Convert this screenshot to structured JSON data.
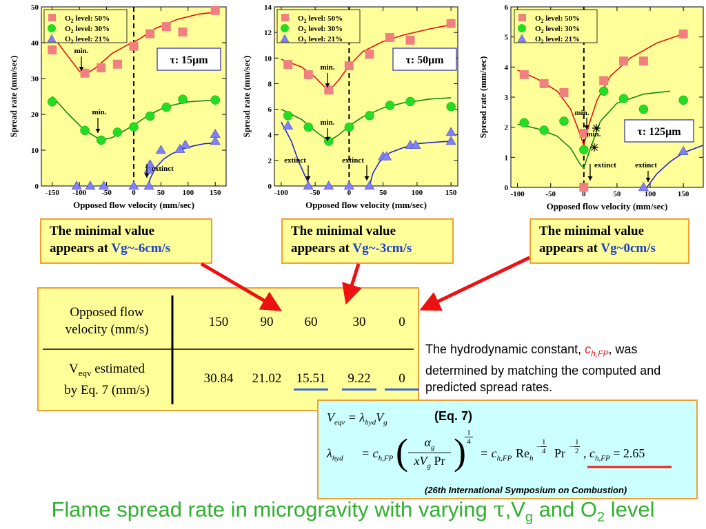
{
  "chart_data": [
    {
      "type": "scatter",
      "xlabel": "Opposed flow velocity (mm/sec)",
      "ylabel": "Spread rate (mm/sec)",
      "xlim": [
        -170,
        170
      ],
      "ylim": [
        0,
        50
      ],
      "xticks": [
        -150,
        -100,
        -50,
        0,
        50,
        100,
        150
      ],
      "yticks": [
        0,
        10,
        20,
        30,
        40,
        50
      ],
      "tau_label": "τ: 15μm",
      "legend": [
        "O2 level: 50%",
        "O2 level: 30%",
        "O2 level: 21%"
      ],
      "series": [
        {
          "name": "O2 level: 50%",
          "color": "#f08080",
          "marker": "square",
          "x": [
            -150,
            -90,
            -60,
            -30,
            0,
            30,
            60,
            90,
            150
          ],
          "y": [
            38,
            31.5,
            33,
            34,
            39,
            42.5,
            44.5,
            43,
            49
          ],
          "curve_x": [
            -150,
            -120,
            -100,
            -90,
            -70,
            -40,
            -10,
            10,
            40,
            80,
            120,
            150
          ],
          "curve_y": [
            42,
            36,
            32,
            31,
            33,
            37,
            39.5,
            41,
            44,
            46.5,
            48,
            48.5
          ]
        },
        {
          "name": "O2 level: 30%",
          "color": "#22dd22",
          "marker": "circle",
          "x": [
            -150,
            -90,
            -60,
            -30,
            0,
            30,
            60,
            90,
            150
          ],
          "y": [
            23.5,
            15.5,
            12.8,
            15,
            16.5,
            19.5,
            22,
            24.2,
            24
          ],
          "curve_x": [
            -150,
            -120,
            -90,
            -60,
            -40,
            -20,
            0,
            30,
            60,
            100,
            150
          ],
          "curve_y": [
            25,
            20,
            15.5,
            12.8,
            13.5,
            15.2,
            17,
            20,
            22.2,
            23.5,
            24
          ]
        },
        {
          "name": "O2 level: 21%",
          "color": "#8080ff",
          "marker": "triangle",
          "x": [
            -105,
            -80,
            -55,
            0,
            28,
            28,
            30,
            50,
            85,
            95,
            150,
            150
          ],
          "y": [
            0,
            0,
            0,
            0,
            0,
            4.5,
            6,
            10,
            10.3,
            11.5,
            12.5,
            14.5
          ],
          "curve_x": [
            28,
            30,
            40,
            55,
            70,
            90,
            110,
            130,
            150
          ],
          "curve_y": [
            0,
            2,
            5,
            7.5,
            9,
            10.3,
            11.2,
            11.8,
            12
          ]
        }
      ],
      "annotations": [
        {
          "text": "min."
        },
        {
          "text": "min."
        },
        {
          "text": "extinct"
        }
      ]
    },
    {
      "type": "scatter",
      "xlabel": "Opposed flow velocity (mm/sec)",
      "ylabel": "Spread rate (mm/sec)",
      "xlim": [
        -110,
        160
      ],
      "ylim": [
        0,
        14
      ],
      "xticks": [
        -100,
        -50,
        0,
        50,
        100,
        150
      ],
      "yticks": [
        0,
        2,
        4,
        6,
        8,
        10,
        12,
        14
      ],
      "tau_label": "τ: 50μm",
      "legend": [
        "O2 level: 50%",
        "O2 level: 30%",
        "O2 level: 21%"
      ],
      "series": [
        {
          "name": "O2 level: 50%",
          "color": "#f08080",
          "marker": "square",
          "x": [
            -90,
            -60,
            -30,
            0,
            30,
            60,
            90,
            150
          ],
          "y": [
            9.5,
            8.7,
            7.5,
            9.4,
            10.3,
            11.6,
            11.4,
            12.7
          ],
          "curve_x": [
            -100,
            -70,
            -50,
            -30,
            -15,
            0,
            20,
            50,
            80,
            120,
            150
          ],
          "curve_y": [
            9.9,
            9.3,
            8.5,
            7.4,
            8.3,
            9.4,
            10.5,
            11.3,
            11.8,
            12.3,
            12.6
          ]
        },
        {
          "name": "O2 level: 30%",
          "color": "#22dd22",
          "marker": "circle",
          "x": [
            -90,
            -60,
            -30,
            0,
            30,
            60,
            90,
            150
          ],
          "y": [
            5.5,
            4.6,
            3.5,
            4.6,
            5.5,
            6.3,
            6.6,
            6.2
          ],
          "curve_x": [
            -100,
            -70,
            -50,
            -30,
            -15,
            0,
            20,
            50,
            80,
            120,
            150
          ],
          "curve_y": [
            6.0,
            5.2,
            4.3,
            3.5,
            4.0,
            4.7,
            5.4,
            6.1,
            6.5,
            6.8,
            6.9
          ]
        },
        {
          "name": "O2 level: 21%",
          "color": "#8080ff",
          "marker": "triangle",
          "x": [
            -90,
            -60,
            -30,
            0,
            30,
            50,
            55,
            90,
            98,
            150,
            150
          ],
          "y": [
            4.7,
            0,
            0,
            0,
            0,
            2.3,
            2.3,
            3.2,
            3.2,
            3.5,
            4.2
          ],
          "curve_x": [
            -100,
            -85,
            -75,
            -65,
            -58
          ],
          "curve_y": [
            5.0,
            3.5,
            2.0,
            0.8,
            0
          ],
          "curve2_x": [
            30,
            35,
            45,
            60,
            80,
            100,
            120,
            150
          ],
          "curve2_y": [
            0,
            1.0,
            1.9,
            2.6,
            3.0,
            3.3,
            3.4,
            3.5
          ]
        }
      ],
      "annotations": [
        {
          "text": "min."
        },
        {
          "text": "min."
        },
        {
          "text": "extinct"
        },
        {
          "text": "extinct"
        }
      ]
    },
    {
      "type": "scatter",
      "xlabel": "Opposed flow velocity (mm/sec)",
      "ylabel": "Spread rate (mm/sec)",
      "xlim": [
        -110,
        180
      ],
      "ylim": [
        0,
        6
      ],
      "xticks": [
        -100,
        -50,
        0,
        50,
        100,
        150
      ],
      "yticks": [
        0,
        1,
        2,
        3,
        4,
        5,
        6
      ],
      "tau_label": "τ: 125μm",
      "legend": [
        "O2 level: 50%",
        "O2 level: 30%",
        "O2 level: 21%"
      ],
      "series": [
        {
          "name": "O2 level: 50%",
          "color": "#f08080",
          "marker": "square",
          "x": [
            -90,
            -60,
            -30,
            0,
            0,
            30,
            60,
            90,
            150
          ],
          "y": [
            3.75,
            3.45,
            3.15,
            1.8,
            0,
            3.55,
            4.2,
            4.2,
            5.1
          ],
          "curve_x": [
            -100,
            -70,
            -40,
            -20,
            -8,
            0,
            8,
            20,
            40,
            70,
            110,
            150
          ],
          "curve_y": [
            3.9,
            3.6,
            3.2,
            2.6,
            1.9,
            1.4,
            2.1,
            2.9,
            3.7,
            4.3,
            4.8,
            5.1
          ]
        },
        {
          "name": "O2 level: 30%",
          "color": "#22dd22",
          "marker": "circle",
          "x": [
            -90,
            -60,
            -30,
            0,
            30,
            60,
            90,
            150
          ],
          "y": [
            2.15,
            1.9,
            2.2,
            1.25,
            3.2,
            2.95,
            2.6,
            2.9
          ],
          "curve_x": [
            -100,
            -70,
            -40,
            -20,
            -5,
            0,
            10,
            25,
            50,
            90,
            130
          ],
          "curve_y": [
            2.1,
            1.95,
            1.7,
            1.3,
            0.75,
            0.65,
            1.3,
            2.2,
            2.8,
            3.1,
            3.2
          ]
        },
        {
          "name": "O2 level: 21%",
          "color": "#8080ff",
          "marker": "triangle",
          "x": [
            90,
            150
          ],
          "y": [
            0,
            1.2
          ],
          "curve_x": [
            95,
            110,
            130,
            150,
            180
          ],
          "curve_y": [
            0,
            0.45,
            0.85,
            1.15,
            1.4
          ]
        }
      ],
      "annotations": [
        {
          "text": "min."
        },
        {
          "text": "min."
        },
        {
          "text": "extinct"
        },
        {
          "text": "extinct"
        }
      ]
    },
    {
      "type": "table",
      "row_headers": [
        {
          "line1": "Opposed flow",
          "line2": "velocity (mm/s)"
        },
        {
          "line1_prefix": "V",
          "line1_sub": "eqv",
          "line1_suffix": " estimated",
          "line2": "by Eq. 7 (mm/s)"
        }
      ],
      "velocities": [
        "150",
        "90",
        "60",
        "30",
        "0"
      ],
      "veqv": [
        "30.84",
        "21.02",
        "15.51",
        "9.22",
        "0"
      ],
      "underlined": [
        false,
        false,
        true,
        true,
        true
      ]
    }
  ],
  "callouts": [
    {
      "line1": "The minimal value",
      "line2_prefix": "appears at ",
      "vg": "Vg~-6cm/s"
    },
    {
      "line1": "The minimal value",
      "line2_prefix": "appears at ",
      "vg": "Vg~-3cm/s"
    },
    {
      "line1": "The minimal value",
      "line2_prefix": "appears at ",
      "vg": "Vg~0cm/s"
    }
  ],
  "note": {
    "prefix": "The hydrodynamic constant, ",
    "symbol_c": "c",
    "symbol_sub": "h,FP",
    "suffix": ", was determined by matching the computed and predicted spread rates."
  },
  "equation": {
    "eq1_lhs": "V",
    "eq1_lhs_sub": "eqv",
    "eq1_rhs": "= λ",
    "eq1_rhs_sub": "hyd",
    "eq1_rhs2": "V",
    "eq1_rhs2_sub": "g",
    "eq_label": "(Eq. 7)",
    "eq2_lambda": "λ",
    "eq2_lambda_sub": "hyd",
    "eq2_c": "= c",
    "eq2_c_sub": "h,FP",
    "frac_num": "α",
    "frac_num_sub": "g",
    "frac_den": "xV",
    "frac_den_sub": "g",
    "frac_den_tail": " Pr",
    "exp_num": "1",
    "exp_den": "4",
    "eq2_mid": "= c",
    "eq2_mid_sub": "h,FP",
    "re": "Re",
    "re_sub": "h",
    "re_exp_sign": "−",
    "re_exp_num": "1",
    "re_exp_den": "4",
    "pr": "Pr",
    "pr_exp_sign": "−",
    "pr_exp_num": "1",
    "pr_exp_den": "2",
    "value_c": ", c",
    "value_sub": "h,FP",
    "value": " = 2.65",
    "citation": "(26th International Symposium on Combustion)"
  },
  "title": {
    "part1": "Flame spread rate in microgravity with varying ",
    "tau": "τ",
    "part2": ",V",
    "vsub": "g",
    "part3": " and O",
    "osub": "2",
    "part4": " level"
  }
}
